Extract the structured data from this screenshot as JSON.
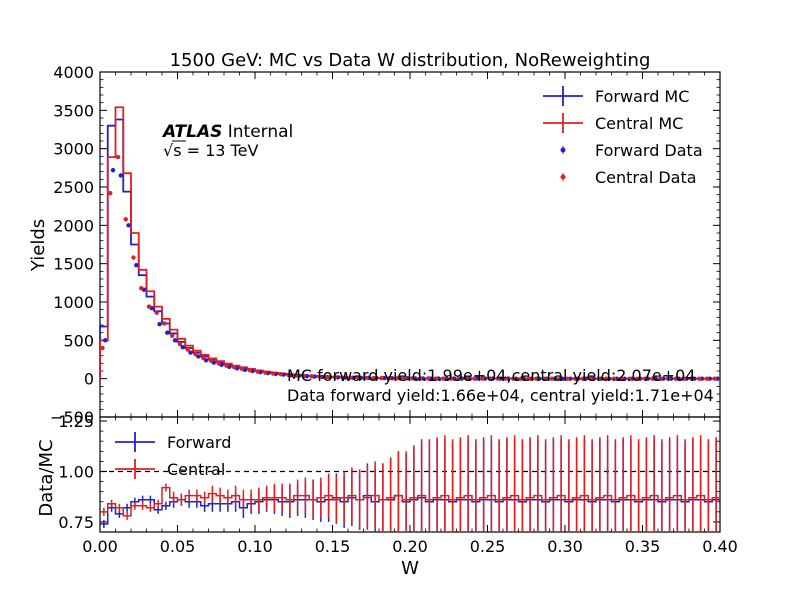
{
  "chart_data": [
    {
      "type": "step",
      "title": "1500 GeV: MC vs Data W distribution, NoReweighting",
      "ylabel": "Yields",
      "xlim": [
        0.0,
        0.4
      ],
      "ylim": [
        -500,
        4000
      ],
      "bin_edges": [
        0.0,
        0.005,
        0.01,
        0.015,
        0.02,
        0.025,
        0.03,
        0.035,
        0.04,
        0.045,
        0.05,
        0.055,
        0.06,
        0.065,
        0.07,
        0.075,
        0.08,
        0.085,
        0.09,
        0.095,
        0.1,
        0.105,
        0.11,
        0.115,
        0.12,
        0.125,
        0.13,
        0.135,
        0.14,
        0.145,
        0.15,
        0.155,
        0.16,
        0.165,
        0.17,
        0.175,
        0.18,
        0.185,
        0.19,
        0.195,
        0.2,
        0.205,
        0.21,
        0.215,
        0.22,
        0.225,
        0.23,
        0.235,
        0.24,
        0.245,
        0.25,
        0.255,
        0.26,
        0.265,
        0.27,
        0.275,
        0.28,
        0.285,
        0.29,
        0.295,
        0.3,
        0.305,
        0.31,
        0.315,
        0.32,
        0.325,
        0.33,
        0.335,
        0.34,
        0.345,
        0.35,
        0.355,
        0.36,
        0.365,
        0.37,
        0.375,
        0.38,
        0.385,
        0.39,
        0.395,
        0.4
      ],
      "y_ticks": [
        -500,
        0,
        500,
        1000,
        1500,
        2000,
        2500,
        3000,
        3500,
        4000
      ],
      "y_tick_labels": [
        "−500",
        "0",
        "500",
        "1000",
        "1500",
        "2000",
        "2500",
        "3000",
        "3500",
        "4000"
      ],
      "series": [
        {
          "name": "Forward MC",
          "kind": "step",
          "color": "#2020d0",
          "values": [
            680,
            3300,
            3380,
            2440,
            1750,
            1350,
            1070,
            880,
            720,
            590,
            480,
            400,
            340,
            290,
            250,
            215,
            185,
            160,
            140,
            120,
            100,
            85,
            72,
            62,
            53,
            45,
            38,
            32,
            27,
            23,
            20,
            17,
            14,
            12,
            10,
            9,
            8,
            7,
            6,
            5,
            4,
            4,
            3,
            3,
            2,
            2,
            2,
            1,
            1,
            1,
            1,
            1,
            1,
            1,
            1,
            1,
            0,
            0,
            0,
            0,
            0,
            0,
            0,
            0,
            0,
            0,
            0,
            0,
            0,
            0,
            0,
            0,
            0,
            0,
            0,
            0,
            0,
            0,
            0,
            0
          ]
        },
        {
          "name": "Central MC",
          "kind": "step",
          "color": "#e02020",
          "values": [
            500,
            2890,
            3540,
            2680,
            1900,
            1420,
            1140,
            940,
            780,
            640,
            520,
            430,
            365,
            310,
            265,
            228,
            196,
            170,
            148,
            128,
            108,
            92,
            78,
            67,
            57,
            48,
            41,
            35,
            30,
            25,
            21,
            18,
            15,
            13,
            11,
            9,
            8,
            7,
            6,
            5,
            4,
            4,
            3,
            3,
            2,
            2,
            2,
            1,
            1,
            1,
            1,
            1,
            1,
            1,
            1,
            1,
            0,
            0,
            0,
            0,
            0,
            0,
            0,
            0,
            0,
            0,
            0,
            0,
            0,
            0,
            0,
            0,
            0,
            0,
            0,
            0,
            0,
            0,
            0,
            0
          ]
        },
        {
          "name": "Forward Data",
          "kind": "points",
          "color": "#2020d0",
          "values": [
            500,
            2720,
            2650,
            2000,
            1480,
            1160,
            920,
            710,
            600,
            500,
            410,
            340,
            290,
            240,
            210,
            180,
            155,
            135,
            115,
            100,
            85,
            73,
            62,
            53,
            45,
            38,
            32,
            27,
            23,
            20,
            17,
            14,
            12,
            10,
            9,
            8,
            7,
            6,
            5,
            4,
            3,
            3,
            2,
            2,
            2,
            1,
            1,
            1,
            1,
            1,
            1,
            1,
            1,
            0,
            0,
            0,
            0,
            0,
            0,
            0,
            0,
            0,
            0,
            0,
            0,
            0,
            0,
            0,
            0,
            0,
            0,
            0,
            0,
            0,
            0,
            0,
            0,
            0,
            0,
            0
          ]
        },
        {
          "name": "Central Data",
          "kind": "points",
          "color": "#e02020",
          "values": [
            400,
            2420,
            2890,
            2080,
            1580,
            1180,
            940,
            860,
            720,
            560,
            450,
            380,
            320,
            270,
            235,
            200,
            170,
            150,
            128,
            110,
            93,
            80,
            68,
            58,
            49,
            42,
            36,
            30,
            26,
            22,
            18,
            15,
            13,
            11,
            9,
            8,
            7,
            6,
            5,
            4,
            4,
            3,
            3,
            2,
            2,
            2,
            1,
            1,
            1,
            1,
            1,
            1,
            1,
            0,
            0,
            0,
            0,
            0,
            0,
            0,
            0,
            0,
            0,
            0,
            0,
            0,
            0,
            0,
            0,
            0,
            0,
            0,
            0,
            0,
            0,
            0,
            0,
            0,
            0,
            0
          ]
        }
      ],
      "yield_text": [
        "MC forward yield:1.99e+04,central yield:2.07e+04",
        "Data forward yield:1.66e+04, central yield:1.71e+04"
      ]
    },
    {
      "type": "step",
      "xlabel": "W",
      "ylabel": "Data/MC",
      "xlim": [
        0.0,
        0.4
      ],
      "ylim": [
        0.7,
        1.27
      ],
      "reference_line": 1.0,
      "x_ticks": [
        0.0,
        0.05,
        0.1,
        0.15,
        0.2,
        0.25,
        0.3,
        0.35,
        0.4
      ],
      "x_tick_labels": [
        "0.00",
        "0.05",
        "0.10",
        "0.15",
        "0.20",
        "0.25",
        "0.30",
        "0.35",
        "0.40"
      ],
      "y_ticks": [
        0.75,
        1.0,
        1.25
      ],
      "y_tick_labels": [
        "0.75",
        "1.00",
        "1.25"
      ],
      "series": [
        {
          "name": "Forward",
          "color": "#2020d0",
          "values": [
            0.74,
            0.82,
            0.79,
            0.82,
            0.85,
            0.86,
            0.86,
            0.81,
            0.83,
            0.85,
            0.86,
            0.85,
            0.85,
            0.83,
            0.84,
            0.84,
            0.84,
            0.85,
            0.82,
            0.84,
            0.85,
            0.86,
            0.86,
            0.85,
            0.85,
            0.86,
            0.86,
            0.86,
            0.85,
            0.86,
            0.87,
            0.85,
            0.87,
            0.86,
            0.88,
            0.85,
            0.86,
            0.86,
            0.88,
            0.85,
            0.86,
            0.87,
            0.85,
            0.86,
            0.86,
            0.85,
            0.86,
            0.86,
            0.85,
            0.86,
            0.86,
            0.85,
            0.86,
            0.86,
            0.85,
            0.86,
            0.86,
            0.85,
            0.86,
            0.86,
            0.85,
            0.86,
            0.86,
            0.85,
            0.86,
            0.86,
            0.85,
            0.86,
            0.86,
            0.85,
            0.86,
            0.86,
            0.85,
            0.86,
            0.86,
            0.85,
            0.86,
            0.86,
            0.85,
            0.86
          ],
          "errors": [
            0.02,
            0.02,
            0.02,
            0.02,
            0.02,
            0.02,
            0.02,
            0.02,
            0.02,
            0.03,
            0.03,
            0.03,
            0.03,
            0.03,
            0.04,
            0.04,
            0.04,
            0.05,
            0.05,
            0.05,
            0.06,
            0.06,
            0.07,
            0.07,
            0.08,
            0.08,
            0.09,
            0.1,
            0.1,
            0.11,
            0.12,
            0.13,
            0.14,
            0.15,
            0.16,
            0.17,
            0.18,
            0.2,
            0.22,
            0.24,
            0.26,
            0.28,
            0.3,
            0.3,
            0.3,
            0.3,
            0.3,
            0.3,
            0.3,
            0.3,
            0.3,
            0.3,
            0.3,
            0.3,
            0.3,
            0.3,
            0.3,
            0.3,
            0.3,
            0.3,
            0.3,
            0.3,
            0.3,
            0.3,
            0.3,
            0.3,
            0.3,
            0.3,
            0.3,
            0.3,
            0.3,
            0.3,
            0.3,
            0.3,
            0.3,
            0.3,
            0.3,
            0.3,
            0.3,
            0.3
          ]
        },
        {
          "name": "Central",
          "color": "#e02020",
          "values": [
            0.8,
            0.84,
            0.82,
            0.78,
            0.83,
            0.83,
            0.82,
            0.84,
            0.92,
            0.87,
            0.86,
            0.88,
            0.88,
            0.87,
            0.89,
            0.88,
            0.87,
            0.88,
            0.86,
            0.86,
            0.86,
            0.87,
            0.87,
            0.87,
            0.86,
            0.88,
            0.88,
            0.86,
            0.87,
            0.88,
            0.86,
            0.87,
            0.88,
            0.86,
            0.87,
            0.88,
            0.86,
            0.87,
            0.88,
            0.86,
            0.87,
            0.88,
            0.86,
            0.87,
            0.88,
            0.86,
            0.87,
            0.88,
            0.86,
            0.87,
            0.88,
            0.86,
            0.87,
            0.88,
            0.86,
            0.87,
            0.88,
            0.86,
            0.87,
            0.88,
            0.86,
            0.87,
            0.88,
            0.86,
            0.87,
            0.88,
            0.86,
            0.87,
            0.88,
            0.86,
            0.87,
            0.88,
            0.86,
            0.87,
            0.88,
            0.86,
            0.87,
            0.88,
            0.86,
            0.87
          ],
          "errors": [
            0.02,
            0.02,
            0.02,
            0.02,
            0.02,
            0.02,
            0.02,
            0.02,
            0.02,
            0.03,
            0.03,
            0.03,
            0.03,
            0.03,
            0.04,
            0.04,
            0.04,
            0.05,
            0.05,
            0.05,
            0.06,
            0.06,
            0.07,
            0.07,
            0.08,
            0.08,
            0.09,
            0.1,
            0.1,
            0.11,
            0.12,
            0.13,
            0.14,
            0.15,
            0.16,
            0.17,
            0.18,
            0.2,
            0.22,
            0.24,
            0.26,
            0.28,
            0.3,
            0.3,
            0.3,
            0.3,
            0.3,
            0.3,
            0.3,
            0.3,
            0.3,
            0.3,
            0.3,
            0.3,
            0.3,
            0.3,
            0.3,
            0.3,
            0.3,
            0.3,
            0.3,
            0.3,
            0.3,
            0.3,
            0.3,
            0.3,
            0.3,
            0.3,
            0.3,
            0.3,
            0.3,
            0.3,
            0.3,
            0.3,
            0.3,
            0.3,
            0.3,
            0.3,
            0.3,
            0.3
          ]
        }
      ]
    }
  ],
  "atlas_label": {
    "bold": "ATLAS",
    "rest": " Internal"
  },
  "energy_label": {
    "sqrt": "√s",
    "rest": " =  13 TeV"
  }
}
